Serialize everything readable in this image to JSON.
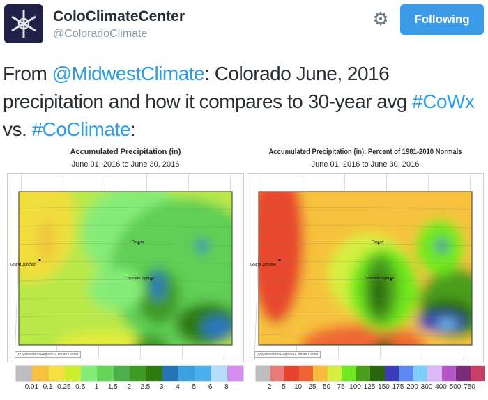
{
  "header": {
    "name": "ColoClimateCenter",
    "handle": "@ColoradoClimate",
    "follow_label": "Following",
    "gear_icon": "gear-icon",
    "avatar_icon": "snowflake-logo"
  },
  "tweet": {
    "t1": "From ",
    "m1": "@MidwestClimate",
    "t2": ": Colorado June, 2016 precipitation and how it compares to 30-year avg ",
    "h1": "#CoWx",
    "t3": " vs. ",
    "h2": "#CoClimate",
    "t4": ":"
  },
  "maps": [
    {
      "title": "Accumulated Precipitation (in)",
      "date": "June 01, 2016 to June 30, 2016",
      "credit": "(c) Midwestern Regional Climate Center",
      "cities": [
        "Denver",
        "Colorado Springs",
        "Grand Junction"
      ],
      "legend_colors": [
        "#bdbdbd",
        "#f7c13c",
        "#f5e042",
        "#cdee2f",
        "#86ec78",
        "#66d65a",
        "#4fae4c",
        "#3f9a23",
        "#2f7a0e",
        "#2475b8",
        "#3aa0e0",
        "#4ab0f0",
        "#b5dcf8",
        "#d48ef0"
      ],
      "legend_labels": [
        "0.01",
        "0.1",
        "0.25",
        "0.5",
        "1",
        "1.5",
        "2",
        "2.5",
        "3",
        "4",
        "5",
        "6",
        "8"
      ]
    },
    {
      "title": "Accumulated Precipitation (in): Percent of 1981-2010 Normals",
      "date": "June 01, 2016 to June 30, 2016",
      "credit": "(c) Midwestern Regional Climate Center",
      "cities": [
        "Denver",
        "Colorado Springs",
        "Grand Junction"
      ],
      "legend_colors": [
        "#bdbdbd",
        "#e87a78",
        "#e8432d",
        "#ef6433",
        "#f7bc3b",
        "#d6ef3f",
        "#70e81e",
        "#4a9e1e",
        "#2b6410",
        "#3a3cb8",
        "#5f88f0",
        "#7ccff8",
        "#dcb8f8",
        "#b556c8",
        "#7a2c78",
        "#c83e64"
      ],
      "legend_labels": [
        "2",
        "5",
        "10",
        "25",
        "50",
        "75",
        "100",
        "125",
        "150",
        "175",
        "200",
        "300",
        "400",
        "500",
        "750"
      ]
    }
  ]
}
